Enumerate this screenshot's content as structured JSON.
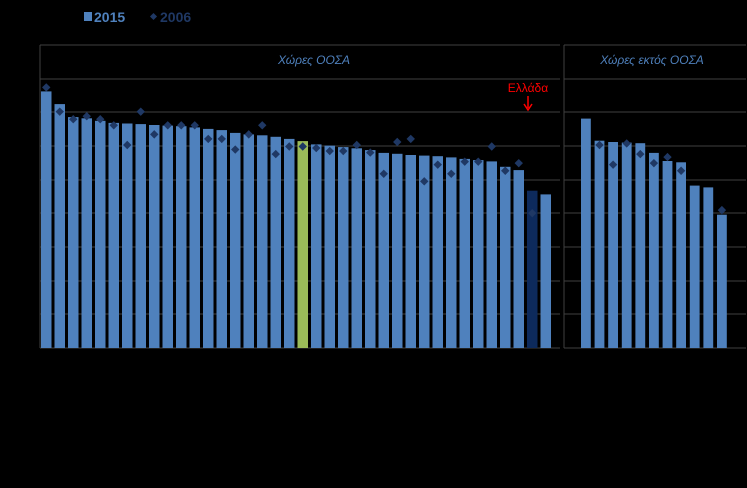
{
  "chart_data": {
    "type": "bar",
    "legend": [
      {
        "label": "2015",
        "marker": "bar",
        "color": "#4f81bd"
      },
      {
        "label": "2006",
        "marker": "diamond",
        "color": "#1f3864"
      }
    ],
    "legend_position": "top-left",
    "grid": true,
    "ylim": [
      0,
      100
    ],
    "panels": [
      {
        "title": "Χώρες ΟΟΣΑ",
        "series": [
          {
            "name": "2015",
            "values": [
              84.7,
              80.5,
              76.2,
              75.8,
              75.0,
              74.3,
              74.1,
              73.9,
              73.6,
              73.4,
              73.2,
              72.8,
              72.3,
              71.9,
              71.0,
              70.5,
              70.2,
              69.7,
              69.0,
              68.3,
              67.2,
              66.8,
              66.3,
              65.9,
              65.3,
              64.4,
              64.1,
              63.7,
              63.5,
              63.3,
              62.9,
              62.4,
              62.0,
              61.6,
              59.8,
              58.7,
              51.9,
              50.7
            ]
          },
          {
            "name": "2006",
            "values": [
              86.0,
              78.0,
              75.5,
              76.5,
              75.5,
              73.5,
              67.0,
              78.0,
              70.5,
              73.5,
              73.5,
              73.5,
              69.0,
              69.0,
              65.5,
              70.5,
              73.5,
              64.0,
              66.5,
              66.5,
              66.0,
              65.0,
              65.0,
              67.0,
              64.5,
              57.5,
              68.0,
              69.0,
              55.0,
              60.5,
              57.5,
              61.5,
              61.5,
              66.5,
              58.5,
              61.0,
              44.5,
              null
            ]
          }
        ],
        "highlight": {
          "index": 19,
          "color": "#9bbb59"
        },
        "annotation": {
          "label": "Ελλάδα",
          "index": 36,
          "color": "#ff0000",
          "bar_color": "#0d2a5c"
        }
      },
      {
        "title": "Χώρες εκτός ΟΟΣΑ",
        "series": [
          {
            "name": "2015",
            "values": [
              75.7,
              68.4,
              68.0,
              67.8,
              67.6,
              64.4,
              61.7,
              61.3,
              53.6,
              53.0,
              44.0
            ]
          },
          {
            "name": "2006",
            "values": [
              null,
              67.0,
              60.5,
              67.5,
              64.0,
              61.0,
              63.0,
              58.5,
              null,
              null,
              45.5
            ]
          }
        ]
      }
    ]
  }
}
